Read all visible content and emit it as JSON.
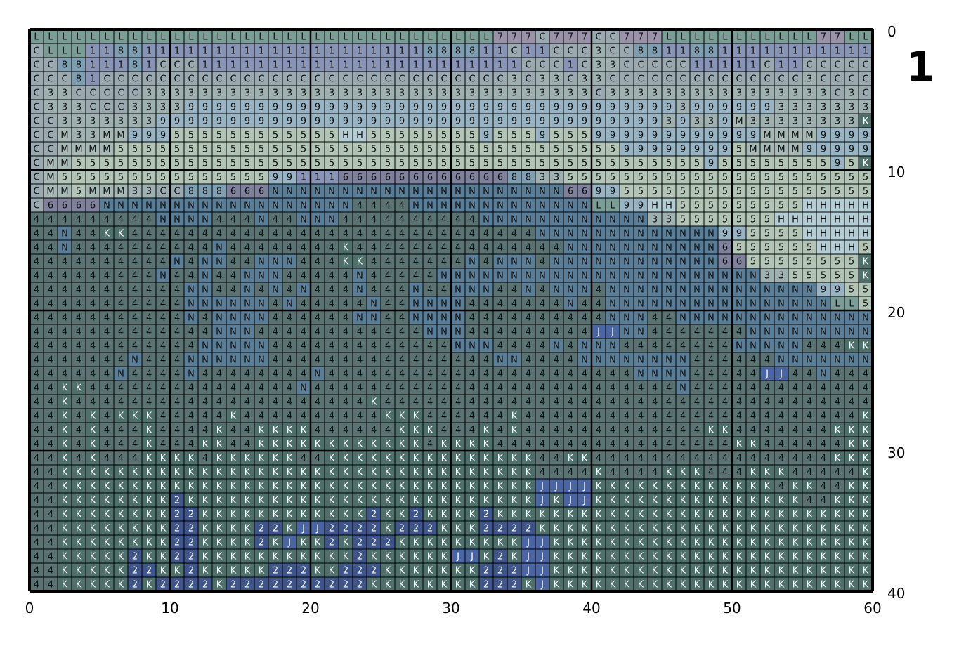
{
  "page_number": "1",
  "chart_data": {
    "type": "heatmap",
    "x_ticks": [
      "0",
      "10",
      "20",
      "30",
      "40",
      "50",
      "60"
    ],
    "y_ticks": [
      "0",
      "10",
      "20",
      "30",
      "40"
    ],
    "xlim": [
      0,
      60
    ],
    "ylim": [
      0,
      40
    ],
    "grid": true,
    "rows": [
      "LLLLLLLLLLLLLLLLLLLLLLLLLLLLLLLLL777C777CC777LLLLLLLLLLL77LL",
      "CLLL118811111111111111111111888811C11CCC3CC881188111111111111",
      "CC8811181CCC11111111111111111111111CCC1C33CCCCC11111C11CCCCCC1",
      "CCC81CCCCCCCCCCCCCCCCCCCCCCCCCCCCC3C33C33CCCCCCCCCCCCCC3CCCCC",
      "C33CCCCC33333333333333333333333333333333C3333333333333333C3C",
      "C333CCC3333999999999999999999999999999999999993999999333333 3",
      "CC333333399999999999999999999999999999999999939339M33333333",
      "CCM33MM999555555555555HH5555555595559555999999999999MMMM9999",
      "CCMMMM5555555555555555555555555555555555559999999 95MMMM99999",
      "CMM55555555555555555555555555555555555555555555595555555595",
      "CM555555555555555991116666666666668833555555555555555555555 5",
      "CMM5MMM33CC888666NNNNNNNNNNNNNNNNNNNNN66995555555555555555555",
      "C6666NNNNNNNNNNNNNNNNNN4444NNNNNNNNNNNNNLL99HH555555555HHHHH",
      "444444444NNNN444N44NNN4444444444NNNNNNNNNNNN335555555HHHHHHH",
      "44N44KK44444444444444444444444444444NNNNNNNNNNNNN995555HHHHHHH",
      "44N4444444444N44444444K444444444444444NNNNNNNNNNN6555555HHH5",
      "4444444444N4NN44NNN444KK4444444N4NNN4NNNNNNNNNNNN6655555555",
      "444444444N44N44NNN44444N44444NNNNNNNNNNNNNNNNNNNNNNN3355555",
      "44444444444NN44N4N4N444N444N44NNN44N4NNN4NNNNNNNNNNNNNNN9955",
      "44444444444NNNNNN4N44444N44NNNN4444444N44NNNNNNNNNNNNNNNNLL5",
      "44444444444N4NNNN444444NN44NNNN4444444444NNN44NNNNNNNNNNNNNN",
      "4444444444444NNN444444444444NNN444444444JJNN4444444NNNNNNNNN",
      "444444444444NNNNN4444444444444NNN4444N4NNN44444444NNNNN444",
      "4444444N444NNNNNN4444444444444444NN4444NNNNNNNN444444NNNNNNN",
      "444444N4444N44444444N4444444444444444444444NNNN44444JJ44N444",
      "44KK444444444444444N44444444444444444444444444N44444444444444",
      "44K444444444444444444444K44444444444444444444444444444444444",
      "44K4K4KKK44444K4444444444KKK444444K444444444444444444444444",
      "44K4K444K4444K44KKKK444444KKK444K4K4444444444444KK4444444KKK",
      "44K4K444K444KK44KKKKKKKKKKKK4KKKK44444444444444444KK444444KK",
      "44K4K444KKKK4KKKKKK44KKKKKKKKKKKKKKK44KK44444444444444444KKK",
      "44KKKKKKKKKKKKKKKKKKKKKKKKKKKKKKKKKK4444K4444KKK444KKK44444KKK",
      "44KKKKKKKKKKKKKKKKKKKKKKKKKKKKKKKKKKJJJJKKKKKKKKKKKKK4KK44KK",
      "44KKKKKKKK2KKKKKKKKKKKKKKKKKKKKKKKKKJKJJKKKKKKKKKKKKKKK44KKK",
      "44KKKKKKKK22KKKKKKKKKKKK2KK2KKKK2KKKKKKKKKKKKKKKKKKKKKKKKKKK",
      "44KKKKKKKK22KKKK22KJJ2222K222KKK2222KKKKKKKKKKKKKKKKKKKKKKKK",
      "44KKKKKKKK22KKKK2KJKK2K222KKKKKKKKKJJKKKKKKKKKKKKKKKKKKKKKKK",
      "44KKKKK2KK22KKKKKKKKKKK2KKKKKKJJK2KJJKKKKKKKKKKKKKKKKKKKKKKK",
      "44KKKKK22KK2KKKKK222KK222KKKKKKK222JJKKKKKKKKKKKKKKKKKKKKKKK",
      "44KKKKK2K2222K2222222222KKKKKKKK222KJKKKKKKKKKKKKKKKKKKKKKKK"
    ],
    "symbol_colors": {
      "L": "#7a9e96",
      "C": "#9aa8b0",
      "7": "#9a92a8",
      "1": "#8894b6",
      "8": "#7e9eb2",
      "3": "#9eb0b0",
      "9": "#98b4c4",
      "5": "#b2c4b6",
      "M": "#a6b8b4",
      "H": "#b4ccd4",
      "6": "#7e809c",
      "N": "#5a7e98",
      "4": "#5a7272",
      "K": "#4f6f6b",
      "2": "#3f5589",
      "J": "#4b65a2"
    },
    "white_text_symbols": [
      "K",
      "2",
      "J"
    ]
  }
}
